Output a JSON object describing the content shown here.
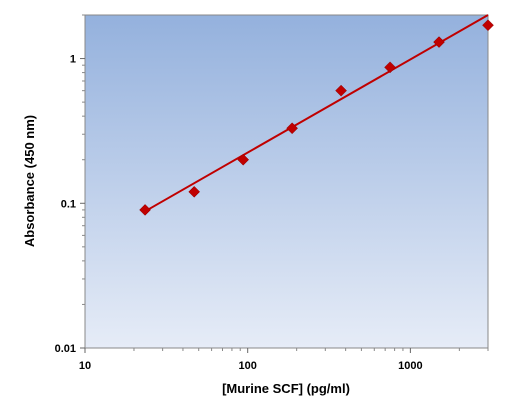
{
  "chart_data": {
    "type": "scatter",
    "title": "",
    "xlabel": "[Murine SCF] (pg/ml)",
    "ylabel": "Absorbance (450 nm)",
    "x_scale": "log",
    "y_scale": "log",
    "xlim": [
      10,
      3000
    ],
    "ylim": [
      0.01,
      2
    ],
    "x_ticks": [
      10,
      100,
      1000
    ],
    "x_tick_labels": [
      "10",
      "100",
      "1000"
    ],
    "y_ticks": [
      0.01,
      0.1,
      1
    ],
    "y_tick_labels": [
      "0.01",
      "0.1",
      "1"
    ],
    "grid": false,
    "legend": "none",
    "series": [
      {
        "x": [
          23.4,
          46.9,
          93.8,
          187.5,
          375,
          750,
          1500,
          3000
        ],
        "y": [
          0.09,
          0.12,
          0.2,
          0.33,
          0.6,
          0.87,
          1.3,
          1.7
        ],
        "marker": "diamond",
        "color": "#c00000"
      }
    ],
    "fit_line": {
      "x": [
        23.4,
        3000
      ],
      "y": [
        0.088,
        2.0
      ],
      "color": "#c00000"
    },
    "background_gradient": [
      "#94b1dd",
      "#e6ecf7"
    ]
  }
}
